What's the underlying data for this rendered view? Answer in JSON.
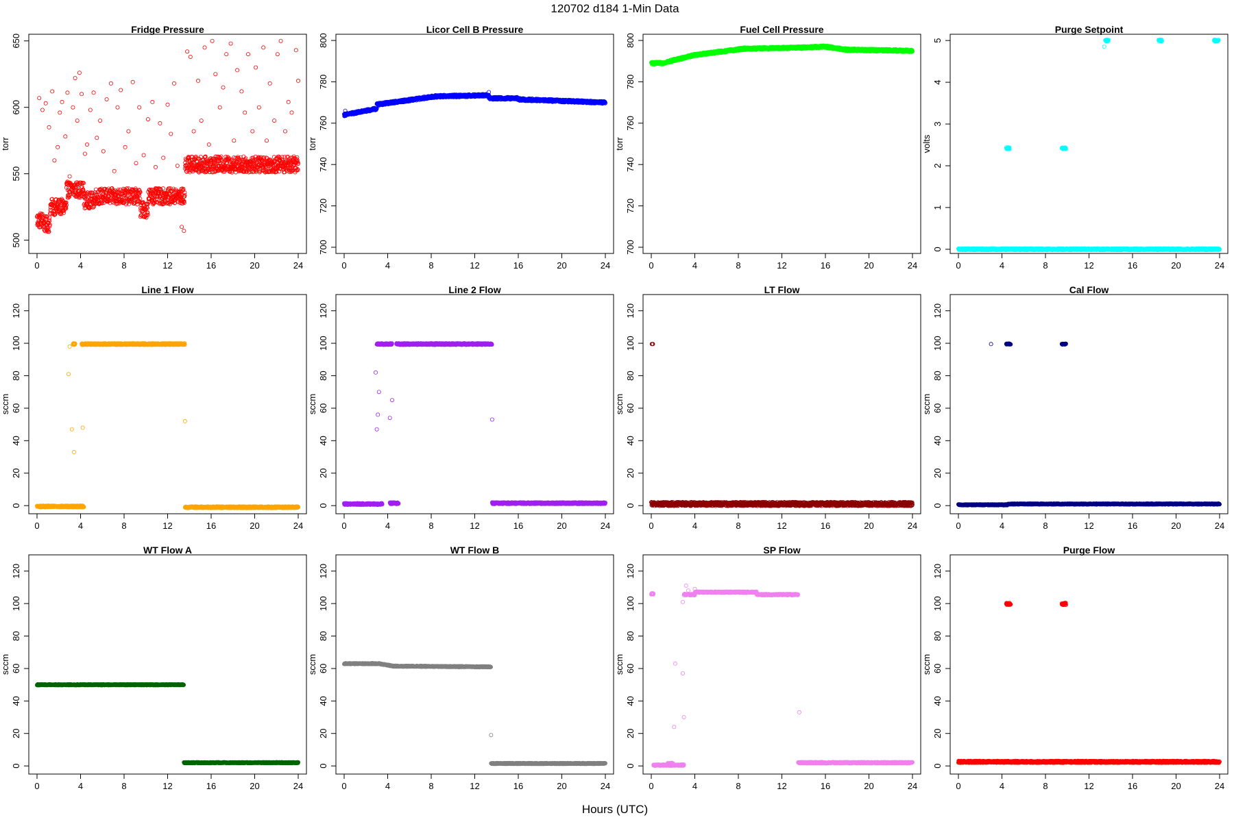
{
  "figure": {
    "title": "120702    d184    1-Min Data",
    "xlabel": "Hours (UTC)"
  },
  "chart_data": [
    {
      "type": "scatter",
      "title": "Fridge Pressure",
      "ylabel": "torr",
      "color": "#ff0000",
      "xlim": [
        0,
        24
      ],
      "ylim": [
        490,
        655
      ],
      "xticks": [
        0,
        4,
        8,
        12,
        16,
        20,
        24
      ],
      "yticks": [
        500,
        550,
        600,
        650
      ],
      "segments": [
        {
          "x0": 0.0,
          "x1": 0.6,
          "y": 515
        },
        {
          "x0": 0.6,
          "x1": 1.2,
          "y": 512
        },
        {
          "x0": 1.2,
          "x1": 2.7,
          "y": 525
        },
        {
          "x0": 2.7,
          "x1": 4.3,
          "y": 538
        },
        {
          "x0": 4.3,
          "x1": 5.3,
          "y": 530
        },
        {
          "x0": 5.3,
          "x1": 9.5,
          "y": 533
        },
        {
          "x0": 9.5,
          "x1": 10.2,
          "y": 523
        },
        {
          "x0": 10.2,
          "x1": 13.6,
          "y": 533
        },
        {
          "x0": 13.6,
          "x1": 24.0,
          "y": 557
        }
      ],
      "spread": 6,
      "scatter_points": [
        [
          0.2,
          607
        ],
        [
          0.5,
          598
        ],
        [
          0.8,
          603
        ],
        [
          1.1,
          585
        ],
        [
          1.4,
          612
        ],
        [
          1.6,
          560
        ],
        [
          1.9,
          570
        ],
        [
          2.1,
          596
        ],
        [
          2.3,
          604
        ],
        [
          2.6,
          578
        ],
        [
          2.8,
          611
        ],
        [
          3.0,
          548
        ],
        [
          3.3,
          600
        ],
        [
          3.5,
          622
        ],
        [
          3.7,
          590
        ],
        [
          3.9,
          626
        ],
        [
          4.1,
          610
        ],
        [
          4.4,
          565
        ],
        [
          4.6,
          572
        ],
        [
          4.9,
          598
        ],
        [
          5.2,
          611
        ],
        [
          5.5,
          577
        ],
        [
          5.8,
          590
        ],
        [
          6.1,
          567
        ],
        [
          6.4,
          606
        ],
        [
          6.8,
          618
        ],
        [
          7.1,
          552
        ],
        [
          7.4,
          600
        ],
        [
          7.7,
          613
        ],
        [
          8.1,
          570
        ],
        [
          8.4,
          582
        ],
        [
          8.8,
          619
        ],
        [
          9.1,
          558
        ],
        [
          9.4,
          600
        ],
        [
          9.8,
          564
        ],
        [
          10.2,
          591
        ],
        [
          10.6,
          604
        ],
        [
          10.9,
          555
        ],
        [
          11.3,
          588
        ],
        [
          11.6,
          562
        ],
        [
          12.0,
          602
        ],
        [
          12.3,
          580
        ],
        [
          12.6,
          618
        ],
        [
          12.9,
          556
        ],
        [
          13.3,
          510
        ],
        [
          13.5,
          507
        ],
        [
          13.8,
          642
        ],
        [
          14.1,
          638
        ],
        [
          14.4,
          582
        ],
        [
          14.8,
          620
        ],
        [
          15.1,
          590
        ],
        [
          15.4,
          645
        ],
        [
          15.8,
          572
        ],
        [
          16.1,
          650
        ],
        [
          16.4,
          625
        ],
        [
          16.8,
          600
        ],
        [
          17.1,
          615
        ],
        [
          17.4,
          640
        ],
        [
          17.8,
          648
        ],
        [
          18.1,
          575
        ],
        [
          18.4,
          628
        ],
        [
          18.8,
          612
        ],
        [
          19.1,
          596
        ],
        [
          19.4,
          640
        ],
        [
          19.8,
          582
        ],
        [
          20.1,
          630
        ],
        [
          20.4,
          600
        ],
        [
          20.8,
          645
        ],
        [
          21.1,
          575
        ],
        [
          21.4,
          618
        ],
        [
          21.8,
          590
        ],
        [
          22.1,
          640
        ],
        [
          22.4,
          650
        ],
        [
          22.8,
          582
        ],
        [
          23.1,
          604
        ],
        [
          23.4,
          596
        ],
        [
          23.8,
          643
        ],
        [
          24.0,
          620
        ]
      ]
    },
    {
      "type": "scatter",
      "title": "Licor Cell B Pressure",
      "ylabel": "torr",
      "color": "#0000ff",
      "xlim": [
        0,
        24
      ],
      "ylim": [
        697,
        803
      ],
      "xticks": [
        0,
        4,
        8,
        12,
        16,
        20,
        24
      ],
      "yticks": [
        700,
        720,
        740,
        760,
        780,
        800
      ],
      "segments": [
        {
          "x0": 0.0,
          "x1": 3.0,
          "y0": 764,
          "y1": 767
        },
        {
          "x0": 3.0,
          "x1": 8.5,
          "y0": 769,
          "y1": 773
        },
        {
          "x0": 8.5,
          "x1": 13.3,
          "y0": 773,
          "y1": 773.5
        },
        {
          "x0": 13.3,
          "x1": 16.0,
          "y0": 772,
          "y1": 772
        },
        {
          "x0": 16.0,
          "x1": 24.0,
          "y0": 771.5,
          "y1": 770
        }
      ],
      "spread": 0.6,
      "scatter_points": [
        [
          0.1,
          766
        ],
        [
          13.3,
          775
        ]
      ]
    },
    {
      "type": "scatter",
      "title": "Fuel Cell Pressure",
      "ylabel": "torr",
      "color": "#00ff00",
      "xlim": [
        0,
        24
      ],
      "ylim": [
        697,
        803
      ],
      "xticks": [
        0,
        4,
        8,
        12,
        16,
        20,
        24
      ],
      "yticks": [
        700,
        720,
        740,
        760,
        780,
        800
      ],
      "segments": [
        {
          "x0": 0.0,
          "x1": 1.0,
          "y0": 789,
          "y1": 789
        },
        {
          "x0": 1.0,
          "x1": 4.0,
          "y0": 789,
          "y1": 793
        },
        {
          "x0": 4.0,
          "x1": 8.5,
          "y0": 793,
          "y1": 796
        },
        {
          "x0": 8.5,
          "x1": 13.5,
          "y0": 796,
          "y1": 796.5
        },
        {
          "x0": 13.5,
          "x1": 16.0,
          "y0": 796.5,
          "y1": 797
        },
        {
          "x0": 16.0,
          "x1": 18.0,
          "y0": 797,
          "y1": 795.5
        },
        {
          "x0": 18.0,
          "x1": 24.0,
          "y0": 795.5,
          "y1": 795
        }
      ],
      "spread": 0.6,
      "scatter_points": []
    },
    {
      "type": "scatter",
      "title": "Purge Setpoint",
      "ylabel": "volts",
      "color": "#00ffff",
      "xlim": [
        0,
        24
      ],
      "ylim": [
        -0.1,
        5.15
      ],
      "xticks": [
        0,
        4,
        8,
        12,
        16,
        20,
        24
      ],
      "yticks": [
        0,
        1,
        2,
        3,
        4,
        5
      ],
      "segments": [
        {
          "x0": 0.0,
          "x1": 24.0,
          "y": 0
        },
        {
          "x0": 4.4,
          "x1": 4.7,
          "y": 2.42
        },
        {
          "x0": 9.5,
          "x1": 9.9,
          "y": 2.42
        },
        {
          "x0": 13.5,
          "x1": 13.8,
          "y": 5
        },
        {
          "x0": 18.4,
          "x1": 18.7,
          "y": 5
        },
        {
          "x0": 23.5,
          "x1": 23.9,
          "y": 5
        }
      ],
      "spread": 0.02,
      "scatter_points": [
        [
          13.4,
          4.85
        ]
      ]
    },
    {
      "type": "scatter",
      "title": "Line 1 Flow",
      "ylabel": "sccm",
      "color": "#ffa500",
      "xlim": [
        0,
        24
      ],
      "ylim": [
        -5,
        130
      ],
      "xticks": [
        0,
        4,
        8,
        12,
        16,
        20,
        24
      ],
      "yticks": [
        0,
        20,
        40,
        60,
        80,
        100,
        120
      ],
      "segments": [
        {
          "x0": 0.0,
          "x1": 4.3,
          "y": -0.5
        },
        {
          "x0": 3.3,
          "x1": 3.5,
          "y": 99.5
        },
        {
          "x0": 4.1,
          "x1": 13.6,
          "y": 99.5
        },
        {
          "x0": 13.6,
          "x1": 24.0,
          "y": -1
        }
      ],
      "spread": 0.5,
      "scatter_points": [
        [
          3.0,
          98
        ],
        [
          2.9,
          81
        ],
        [
          3.2,
          47
        ],
        [
          3.4,
          33
        ],
        [
          4.2,
          48
        ],
        [
          13.6,
          52
        ]
      ]
    },
    {
      "type": "scatter",
      "title": "Line 2 Flow",
      "ylabel": "sccm",
      "color": "#a020f0",
      "xlim": [
        0,
        24
      ],
      "ylim": [
        -5,
        130
      ],
      "xticks": [
        0,
        4,
        8,
        12,
        16,
        20,
        24
      ],
      "yticks": [
        0,
        20,
        40,
        60,
        80,
        100,
        120
      ],
      "segments": [
        {
          "x0": 0.0,
          "x1": 3.5,
          "y": 1
        },
        {
          "x0": 4.2,
          "x1": 5.0,
          "y": 1.5
        },
        {
          "x0": 3.0,
          "x1": 4.4,
          "y": 99.5
        },
        {
          "x0": 4.8,
          "x1": 13.6,
          "y": 99.5
        },
        {
          "x0": 13.6,
          "x1": 24.0,
          "y": 1.5
        }
      ],
      "spread": 0.5,
      "scatter_points": [
        [
          2.9,
          82
        ],
        [
          3.2,
          70
        ],
        [
          3.1,
          56
        ],
        [
          3.0,
          47
        ],
        [
          4.2,
          54
        ],
        [
          4.4,
          65
        ],
        [
          13.6,
          53
        ]
      ]
    },
    {
      "type": "scatter",
      "title": "LT Flow",
      "ylabel": "sccm",
      "color": "#8b0000",
      "xlim": [
        0,
        24
      ],
      "ylim": [
        -5,
        130
      ],
      "xticks": [
        0,
        4,
        8,
        12,
        16,
        20,
        24
      ],
      "yticks": [
        0,
        20,
        40,
        60,
        80,
        100,
        120
      ],
      "segments": [
        {
          "x0": 0.0,
          "x1": 3.0,
          "y": 1
        },
        {
          "x0": 3.0,
          "x1": 24.0,
          "y": 1
        }
      ],
      "spread": 1.2,
      "scatter_points": [
        [
          0.05,
          99.5
        ],
        [
          0.15,
          99.5
        ],
        [
          0.1,
          99.5
        ]
      ]
    },
    {
      "type": "scatter",
      "title": "Cal Flow",
      "ylabel": "sccm",
      "color": "#000080",
      "xlim": [
        0,
        24
      ],
      "ylim": [
        -5,
        130
      ],
      "xticks": [
        0,
        4,
        8,
        12,
        16,
        20,
        24
      ],
      "yticks": [
        0,
        20,
        40,
        60,
        80,
        100,
        120
      ],
      "segments": [
        {
          "x0": 0.0,
          "x1": 4.5,
          "y": 0.5
        },
        {
          "x0": 4.5,
          "x1": 24.0,
          "y": 1
        },
        {
          "x0": 4.4,
          "x1": 4.8,
          "y": 99.5
        },
        {
          "x0": 9.5,
          "x1": 9.9,
          "y": 99.5
        }
      ],
      "spread": 0.3,
      "scatter_points": [
        [
          3.0,
          99.5
        ]
      ]
    },
    {
      "type": "scatter",
      "title": "WT Flow A",
      "ylabel": "sccm",
      "color": "#006400",
      "xlim": [
        0,
        24
      ],
      "ylim": [
        -5,
        130
      ],
      "xticks": [
        0,
        4,
        8,
        12,
        16,
        20,
        24
      ],
      "yticks": [
        0,
        20,
        40,
        60,
        80,
        100,
        120
      ],
      "segments": [
        {
          "x0": 0.0,
          "x1": 13.5,
          "y": 50
        },
        {
          "x0": 13.5,
          "x1": 24.0,
          "y": 2
        }
      ],
      "spread": 0.3,
      "scatter_points": []
    },
    {
      "type": "scatter",
      "title": "WT Flow B",
      "ylabel": "sccm",
      "color": "#808080",
      "xlim": [
        0,
        24
      ],
      "ylim": [
        -5,
        130
      ],
      "xticks": [
        0,
        4,
        8,
        12,
        16,
        20,
        24
      ],
      "yticks": [
        0,
        20,
        40,
        60,
        80,
        100,
        120
      ],
      "segments": [
        {
          "x0": 0.0,
          "x1": 3.2,
          "y0": 63,
          "y1": 63
        },
        {
          "x0": 3.2,
          "x1": 4.5,
          "y0": 63,
          "y1": 61.5
        },
        {
          "x0": 4.5,
          "x1": 13.5,
          "y0": 61.5,
          "y1": 61
        },
        {
          "x0": 13.5,
          "x1": 24.0,
          "y0": 1.5,
          "y1": 1.5
        }
      ],
      "spread": 0.3,
      "scatter_points": [
        [
          13.5,
          19
        ]
      ]
    },
    {
      "type": "scatter",
      "title": "SP Flow",
      "ylabel": "sccm",
      "color": "#ee82ee",
      "xlim": [
        0,
        24
      ],
      "ylim": [
        -5,
        130
      ],
      "xticks": [
        0,
        4,
        8,
        12,
        16,
        20,
        24
      ],
      "yticks": [
        0,
        20,
        40,
        60,
        80,
        100,
        120
      ],
      "segments": [
        {
          "x0": 0.0,
          "x1": 0.2,
          "y": 106
        },
        {
          "x0": 0.2,
          "x1": 3.0,
          "y": 0.5
        },
        {
          "x0": 1.5,
          "x1": 2.0,
          "y": 1.5
        },
        {
          "x0": 3.0,
          "x1": 4.0,
          "y": 105.5
        },
        {
          "x0": 4.0,
          "x1": 9.7,
          "y": 107
        },
        {
          "x0": 9.7,
          "x1": 13.5,
          "y": 105.5
        },
        {
          "x0": 13.5,
          "x1": 24.0,
          "y": 2
        }
      ],
      "spread": 0.4,
      "scatter_points": [
        [
          2.2,
          63
        ],
        [
          2.1,
          24
        ],
        [
          2.9,
          57
        ],
        [
          3.0,
          30
        ],
        [
          2.9,
          101
        ],
        [
          3.2,
          111
        ],
        [
          3.4,
          108
        ],
        [
          4.0,
          109
        ],
        [
          13.6,
          33
        ]
      ]
    },
    {
      "type": "scatter",
      "title": "Purge Flow",
      "ylabel": "sccm",
      "color": "#ff0000",
      "xlim": [
        0,
        24
      ],
      "ylim": [
        -5,
        130
      ],
      "xticks": [
        0,
        4,
        8,
        12,
        16,
        20,
        24
      ],
      "yticks": [
        0,
        20,
        40,
        60,
        80,
        100,
        120
      ],
      "segments": [
        {
          "x0": 0.0,
          "x1": 24.0,
          "y": 2.5
        },
        {
          "x0": 4.4,
          "x1": 4.8,
          "y": 99.8
        },
        {
          "x0": 9.5,
          "x1": 9.9,
          "y": 99.8
        }
      ],
      "spread": 0.6,
      "scatter_points": []
    }
  ]
}
